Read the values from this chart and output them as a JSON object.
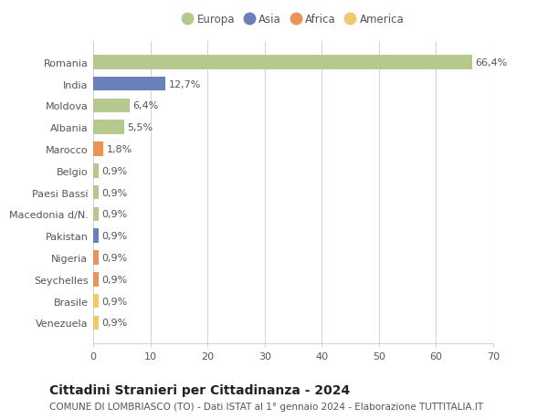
{
  "countries": [
    "Romania",
    "India",
    "Moldova",
    "Albania",
    "Marocco",
    "Belgio",
    "Paesi Bassi",
    "Macedonia d/N.",
    "Pakistan",
    "Nigeria",
    "Seychelles",
    "Brasile",
    "Venezuela"
  ],
  "values": [
    66.4,
    12.7,
    6.4,
    5.5,
    1.8,
    0.9,
    0.9,
    0.9,
    0.9,
    0.9,
    0.9,
    0.9,
    0.9
  ],
  "labels": [
    "66,4%",
    "12,7%",
    "6,4%",
    "5,5%",
    "1,8%",
    "0,9%",
    "0,9%",
    "0,9%",
    "0,9%",
    "0,9%",
    "0,9%",
    "0,9%",
    "0,9%"
  ],
  "continents": [
    "Europa",
    "Asia",
    "Europa",
    "Europa",
    "Africa",
    "Europa",
    "Europa",
    "Europa",
    "Asia",
    "Africa",
    "Africa",
    "America",
    "America"
  ],
  "colors": {
    "Europa": "#b5c98e",
    "Asia": "#6b80b8",
    "Africa": "#e8935a",
    "America": "#f0c96a"
  },
  "legend_order": [
    "Europa",
    "Asia",
    "Africa",
    "America"
  ],
  "title": "Cittadini Stranieri per Cittadinanza - 2024",
  "subtitle": "COMUNE DI LOMBRIASCO (TO) - Dati ISTAT al 1° gennaio 2024 - Elaborazione TUTTITALIA.IT",
  "xlim": [
    0,
    70
  ],
  "xticks": [
    0,
    10,
    20,
    30,
    40,
    50,
    60,
    70
  ],
  "background_color": "#ffffff",
  "grid_color": "#d5d5d5",
  "bar_height": 0.65,
  "label_fontsize": 8,
  "title_fontsize": 10,
  "subtitle_fontsize": 7.5,
  "tick_fontsize": 8,
  "legend_fontsize": 8.5
}
